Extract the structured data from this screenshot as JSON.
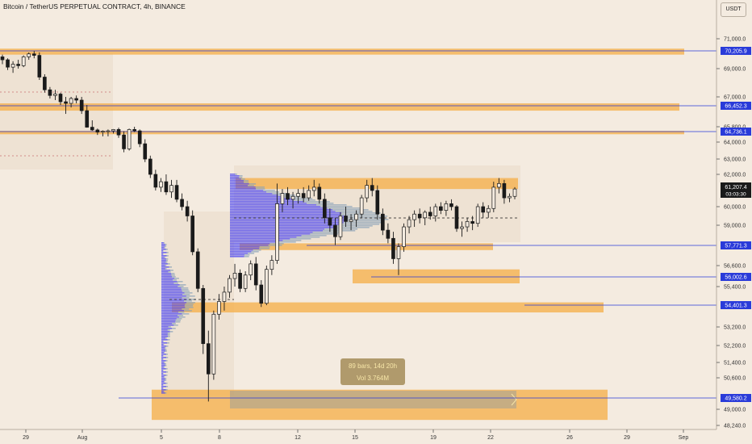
{
  "header": {
    "title": "Bitcoin / TetherUS PERPETUAL CONTRACT, 4h, BINANCE",
    "currency": "USDT"
  },
  "measure_tooltip": {
    "line1": "89 bars, 14d 20h",
    "line2": "Vol 3.764M"
  },
  "colors": {
    "background": "#f4ebe0",
    "candle": "#1a1a1a",
    "zone_orange": "#f5ad45",
    "level_line": "#2a3bd9",
    "volume_profile_blue": "#4a43f0",
    "volume_profile_grey": "#8aa3b8",
    "measure_box": "#8f9aa0"
  },
  "chart_data": {
    "type": "candlestick",
    "symbol": "BTCUSDT.P",
    "timeframe": "4h",
    "exchange": "BINANCE",
    "y_axis": {
      "side": "right",
      "ticks": [
        "71,000.0",
        "69,000.0",
        "67,000.0",
        "65,800.0",
        "64,000.0",
        "63,000.0",
        "62,000.0",
        "60,000.0",
        "59,000.0",
        "56,600.0",
        "55,400.0",
        "53,200.0",
        "52,200.0",
        "51,400.0",
        "50,600.0",
        "49,000.0",
        "48,240.0"
      ],
      "labelled_levels": [
        {
          "label": "70,205.9",
          "value": 70205.9
        },
        {
          "label": "66,452.3",
          "value": 66452.3
        },
        {
          "label": "64,736.1",
          "value": 64736.1
        },
        {
          "label": "57,771.3",
          "value": 57771.3
        },
        {
          "label": "56,002.6",
          "value": 56002.6
        },
        {
          "label": "54,401.3",
          "value": 54401.3
        },
        {
          "label": "49,580.2",
          "value": 49580.2
        }
      ],
      "current_price": {
        "label": "61,207.4",
        "countdown": "03:03:30",
        "value": 61207.4
      }
    },
    "x_axis": {
      "ticks": [
        "29",
        "Aug",
        "5",
        "8",
        "12",
        "15",
        "19",
        "22",
        "26",
        "29",
        "Sep"
      ]
    },
    "ohlc": [
      [
        69800,
        69950,
        69300,
        69600
      ],
      [
        69600,
        69700,
        68900,
        69100
      ],
      [
        69100,
        69500,
        68700,
        69300
      ],
      [
        69300,
        69600,
        69000,
        69200
      ],
      [
        69200,
        69900,
        69100,
        69800
      ],
      [
        69800,
        70100,
        69600,
        70000
      ],
      [
        70000,
        70200,
        69700,
        69900
      ],
      [
        69900,
        70100,
        68200,
        68400
      ],
      [
        68400,
        68600,
        67300,
        67500
      ],
      [
        67500,
        67700,
        66900,
        67100
      ],
      [
        67100,
        67500,
        66800,
        67200
      ],
      [
        67200,
        67300,
        66500,
        66700
      ],
      [
        66700,
        67000,
        66200,
        66600
      ],
      [
        66600,
        67000,
        66400,
        66900
      ],
      [
        66900,
        67100,
        66600,
        66800
      ],
      [
        66800,
        67000,
        66200,
        66300
      ],
      [
        66300,
        66500,
        65600,
        65700
      ],
      [
        65700,
        66000,
        64900,
        65100
      ],
      [
        65100,
        65400,
        64500,
        64700
      ],
      [
        64700,
        65000,
        64400,
        64800
      ],
      [
        64800,
        65200,
        64400,
        64900
      ],
      [
        64900,
        65300,
        64600,
        65200
      ],
      [
        65200,
        65600,
        64300,
        64500
      ],
      [
        64500,
        64800,
        63400,
        63600
      ],
      [
        63600,
        65400,
        63500,
        65200
      ],
      [
        65200,
        65800,
        64700,
        64900
      ],
      [
        64900,
        65200,
        63700,
        63900
      ],
      [
        63900,
        64200,
        62800,
        63000
      ],
      [
        63000,
        63200,
        61800,
        62000
      ],
      [
        62000,
        62300,
        61100,
        61300
      ],
      [
        61300,
        61800,
        61000,
        61600
      ],
      [
        61600,
        62000,
        60800,
        61000
      ],
      [
        61000,
        61700,
        60600,
        61400
      ],
      [
        61400,
        61700,
        60300,
        60500
      ],
      [
        60500,
        60900,
        59800,
        60000
      ],
      [
        60000,
        60400,
        59200,
        59500
      ],
      [
        59500,
        59800,
        57200,
        57400
      ],
      [
        57400,
        57600,
        55100,
        55300
      ],
      [
        55300,
        55500,
        51800,
        52300
      ],
      [
        52300,
        53000,
        49400,
        50800
      ],
      [
        50800,
        54100,
        50500,
        53900
      ],
      [
        53900,
        55000,
        53600,
        54600
      ],
      [
        54600,
        55400,
        54100,
        55100
      ],
      [
        55100,
        56100,
        54800,
        55900
      ],
      [
        55900,
        56700,
        55400,
        56200
      ],
      [
        56200,
        56400,
        55100,
        55300
      ],
      [
        55300,
        56300,
        55100,
        56100
      ],
      [
        56100,
        56900,
        55800,
        56700
      ],
      [
        56700,
        57100,
        55200,
        55500
      ],
      [
        55500,
        55800,
        54300,
        54500
      ],
      [
        54500,
        56600,
        54400,
        56400
      ],
      [
        56400,
        57200,
        56100,
        56900
      ],
      [
        56900,
        61500,
        56700,
        60200
      ],
      [
        60200,
        61200,
        59700,
        60900
      ],
      [
        60900,
        61300,
        60100,
        60500
      ],
      [
        60500,
        61000,
        59900,
        60700
      ],
      [
        60700,
        61200,
        60200,
        60900
      ],
      [
        60900,
        61300,
        60300,
        60600
      ],
      [
        60600,
        61400,
        60400,
        61100
      ],
      [
        61100,
        61700,
        60700,
        61300
      ],
      [
        61300,
        61500,
        60200,
        60500
      ],
      [
        60500,
        60900,
        59100,
        59400
      ],
      [
        59400,
        59900,
        58600,
        59000
      ],
      [
        59000,
        59400,
        57800,
        58300
      ],
      [
        58300,
        59700,
        58100,
        59500
      ],
      [
        59500,
        60000,
        58900,
        59200
      ],
      [
        59200,
        59600,
        58700,
        59300
      ],
      [
        59300,
        59800,
        58900,
        59600
      ],
      [
        59600,
        60800,
        59400,
        60600
      ],
      [
        60600,
        61700,
        60300,
        61400
      ],
      [
        61400,
        61800,
        60700,
        61100
      ],
      [
        61100,
        61400,
        59300,
        59600
      ],
      [
        59600,
        59900,
        58400,
        58700
      ],
      [
        58700,
        59100,
        57900,
        58200
      ],
      [
        58200,
        58600,
        56700,
        57000
      ],
      [
        57000,
        57900,
        56100,
        57700
      ],
      [
        57700,
        59100,
        57400,
        58900
      ],
      [
        58900,
        59500,
        58500,
        59300
      ],
      [
        59300,
        59800,
        58900,
        59600
      ],
      [
        59600,
        59900,
        59100,
        59400
      ],
      [
        59400,
        59800,
        59000,
        59700
      ],
      [
        59700,
        60000,
        59300,
        59500
      ],
      [
        59500,
        60200,
        59200,
        60000
      ],
      [
        60000,
        60300,
        59600,
        59800
      ],
      [
        59800,
        60400,
        59500,
        60200
      ],
      [
        60200,
        60500,
        59800,
        60000
      ],
      [
        60000,
        60100,
        58600,
        58800
      ],
      [
        58800,
        59200,
        58300,
        58900
      ],
      [
        58900,
        59400,
        58600,
        59200
      ],
      [
        59200,
        59500,
        58700,
        59100
      ],
      [
        59100,
        60200,
        58900,
        60000
      ],
      [
        60000,
        60300,
        59400,
        59700
      ],
      [
        59700,
        60100,
        59400,
        59900
      ],
      [
        59900,
        61600,
        59700,
        61300
      ],
      [
        61300,
        61800,
        60900,
        61500
      ],
      [
        61500,
        61700,
        60200,
        60600
      ],
      [
        60600,
        60900,
        60300,
        60700
      ],
      [
        60700,
        61300,
        60500,
        61200
      ]
    ],
    "zones": [
      {
        "name": "resistance-70200",
        "from": 69950,
        "to": 70350
      },
      {
        "name": "resistance-66450",
        "from": 66300,
        "to": 66600
      },
      {
        "name": "resistance-64700",
        "from": 64550,
        "to": 64900
      },
      {
        "name": "range-high",
        "from": 61200,
        "to": 61800
      },
      {
        "name": "range-low",
        "from": 57500,
        "to": 57900
      },
      {
        "name": "support-56000",
        "from": 55600,
        "to": 56400
      },
      {
        "name": "support-54400",
        "from": 54000,
        "to": 54550
      },
      {
        "name": "demand-49500",
        "from": 48500,
        "to": 50000
      }
    ],
    "grid": false,
    "legend": "none"
  }
}
